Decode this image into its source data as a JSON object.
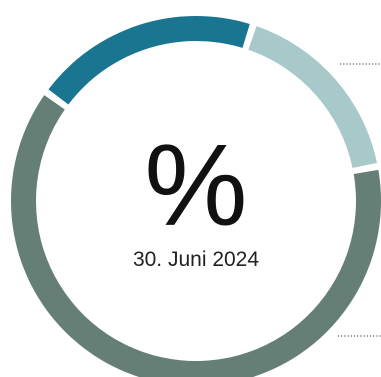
{
  "chart_data": {
    "type": "pie",
    "variant": "donut",
    "center_symbol": "%",
    "center_label": "30. Juni 2024",
    "slices": [
      {
        "value": 20,
        "color": "#1a7590"
      },
      {
        "value": 17,
        "color": "#a8c9c9"
      },
      {
        "value": 63,
        "color": "#657f77"
      }
    ],
    "leader_lines": true
  }
}
